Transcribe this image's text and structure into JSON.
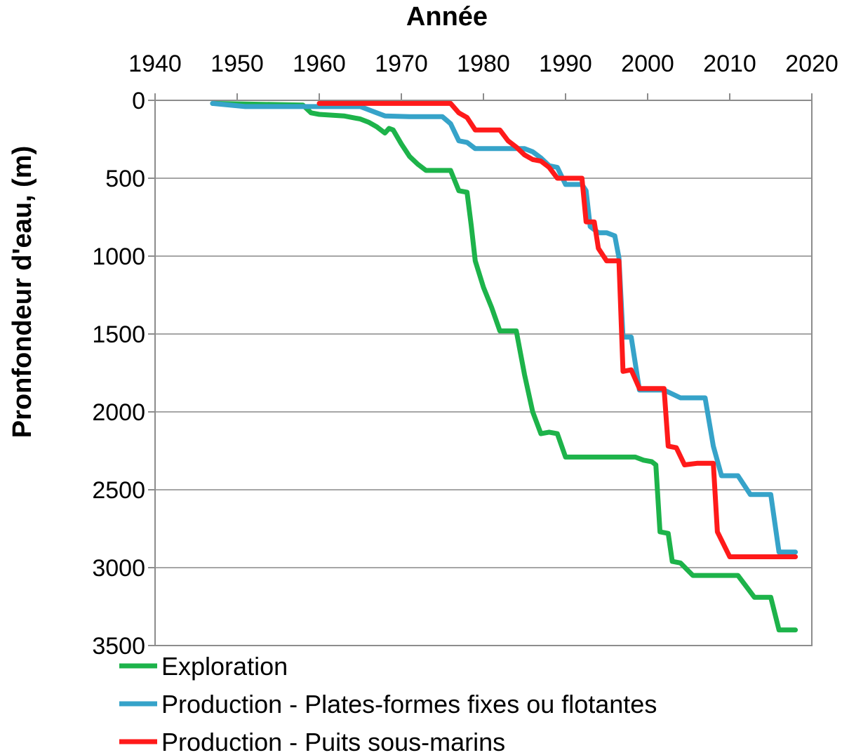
{
  "chart_data": {
    "type": "line",
    "title": "",
    "xlabel": "Année",
    "ylabel": "Pronfondeur d'eau, (m)",
    "xlim": [
      1940,
      2020
    ],
    "ylim": [
      0,
      3500
    ],
    "y_inverted": true,
    "x_axis_position": "top",
    "grid": true,
    "x_ticks": [
      1940,
      1950,
      1960,
      1970,
      1980,
      1990,
      2000,
      2010,
      2020
    ],
    "y_ticks": [
      0,
      500,
      1000,
      1500,
      2000,
      2500,
      3000,
      3500
    ],
    "legend_position": "bottom-left",
    "series": [
      {
        "name": "Exploration",
        "color": "#1db34a",
        "points": [
          [
            1947,
            20
          ],
          [
            1958,
            30
          ],
          [
            1959,
            80
          ],
          [
            1960,
            90
          ],
          [
            1963,
            100
          ],
          [
            1965,
            120
          ],
          [
            1966,
            140
          ],
          [
            1967,
            170
          ],
          [
            1968,
            210
          ],
          [
            1968.5,
            180
          ],
          [
            1969,
            190
          ],
          [
            1970,
            280
          ],
          [
            1971,
            360
          ],
          [
            1972,
            410
          ],
          [
            1973,
            450
          ],
          [
            1976,
            450
          ],
          [
            1977,
            580
          ],
          [
            1978,
            590
          ],
          [
            1978.5,
            800
          ],
          [
            1979,
            1030
          ],
          [
            1980,
            1200
          ],
          [
            1981,
            1330
          ],
          [
            1982,
            1480
          ],
          [
            1984,
            1480
          ],
          [
            1985,
            1760
          ],
          [
            1986,
            2000
          ],
          [
            1987,
            2140
          ],
          [
            1988,
            2130
          ],
          [
            1989,
            2140
          ],
          [
            1990,
            2290
          ],
          [
            1998.5,
            2290
          ],
          [
            1999.5,
            2310
          ],
          [
            2000.5,
            2320
          ],
          [
            2001,
            2340
          ],
          [
            2001.5,
            2770
          ],
          [
            2002.5,
            2780
          ],
          [
            2003,
            2960
          ],
          [
            2004,
            2970
          ],
          [
            2005.5,
            3050
          ],
          [
            2011,
            3050
          ],
          [
            2012,
            3120
          ],
          [
            2013,
            3190
          ],
          [
            2015,
            3190
          ],
          [
            2016,
            3400
          ],
          [
            2018,
            3400
          ]
        ]
      },
      {
        "name": "Production - Plates-formes fixes ou flotantes",
        "color": "#36a3c9",
        "points": [
          [
            1947,
            20
          ],
          [
            1951,
            40
          ],
          [
            1965,
            40
          ],
          [
            1967,
            80
          ],
          [
            1968,
            100
          ],
          [
            1971,
            105
          ],
          [
            1975,
            105
          ],
          [
            1976,
            150
          ],
          [
            1977,
            260
          ],
          [
            1978,
            270
          ],
          [
            1979,
            310
          ],
          [
            1985,
            310
          ],
          [
            1986,
            330
          ],
          [
            1987,
            370
          ],
          [
            1988,
            420
          ],
          [
            1989,
            430
          ],
          [
            1990,
            540
          ],
          [
            1992,
            540
          ],
          [
            1992.5,
            580
          ],
          [
            1993,
            810
          ],
          [
            1994,
            850
          ],
          [
            1995,
            850
          ],
          [
            1996,
            870
          ],
          [
            1996.5,
            1010
          ],
          [
            1997,
            1520
          ],
          [
            1998,
            1520
          ],
          [
            1999,
            1860
          ],
          [
            2002,
            1860
          ],
          [
            2004,
            1910
          ],
          [
            2007,
            1910
          ],
          [
            2008,
            2220
          ],
          [
            2009,
            2410
          ],
          [
            2011,
            2410
          ],
          [
            2012.5,
            2530
          ],
          [
            2015,
            2530
          ],
          [
            2016,
            2900
          ],
          [
            2018,
            2900
          ]
        ]
      },
      {
        "name": "Production - Puits sous-marins",
        "color": "#ff1a1a",
        "points": [
          [
            1960,
            20
          ],
          [
            1976,
            20
          ],
          [
            1977,
            80
          ],
          [
            1978,
            110
          ],
          [
            1979,
            190
          ],
          [
            1982,
            190
          ],
          [
            1983,
            260
          ],
          [
            1984,
            300
          ],
          [
            1985,
            350
          ],
          [
            1986,
            380
          ],
          [
            1987,
            390
          ],
          [
            1988,
            430
          ],
          [
            1989,
            500
          ],
          [
            1992,
            500
          ],
          [
            1992.5,
            780
          ],
          [
            1993.5,
            780
          ],
          [
            1994,
            950
          ],
          [
            1995,
            1030
          ],
          [
            1996.5,
            1030
          ],
          [
            1997,
            1740
          ],
          [
            1998,
            1730
          ],
          [
            1999,
            1850
          ],
          [
            2002,
            1850
          ],
          [
            2002.5,
            2220
          ],
          [
            2003.5,
            2230
          ],
          [
            2004.5,
            2340
          ],
          [
            2006,
            2330
          ],
          [
            2008,
            2330
          ],
          [
            2008.5,
            2770
          ],
          [
            2010,
            2930
          ],
          [
            2018,
            2930
          ]
        ]
      }
    ]
  }
}
